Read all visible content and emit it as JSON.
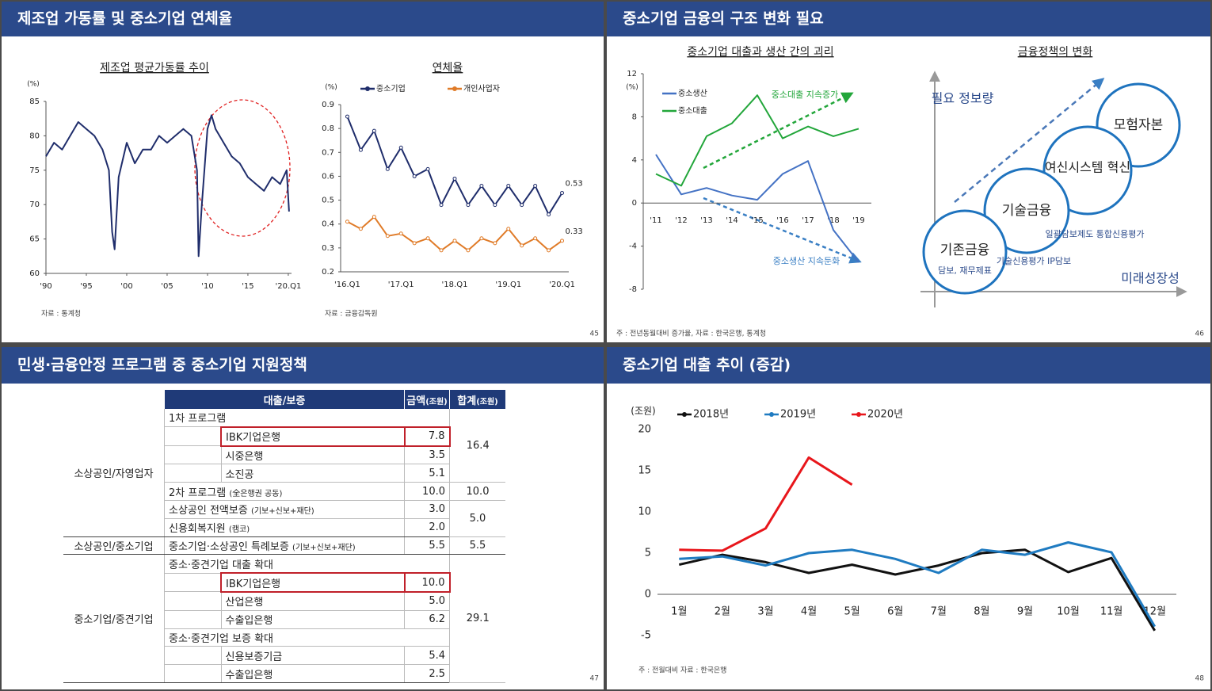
{
  "slides": [
    {
      "title": "제조업 가동률 및 중소기업 연체율",
      "page": "45"
    },
    {
      "title": "중소기업 금융의 구조 변화 필요",
      "page": "46",
      "note": "주 : 전년동월대비 증가율,  자료 : 한국은행, 통계청"
    },
    {
      "title": "민생·금융안정 프로그램 중 중소기업 지원정책",
      "page": "47"
    },
    {
      "title": "중소기업 대출 추이 (증감)",
      "page": "48",
      "note": "주 : 전월대비  자료 : 한국은행"
    }
  ],
  "chart_data": [
    {
      "type": "line",
      "title": "제조업 평균가동률 추이",
      "y_label": "(%)",
      "source": "자료 : 통계청",
      "x": [
        1990,
        1991,
        1992,
        1993,
        1994,
        1995,
        1996,
        1997,
        1997.8,
        1998.2,
        1998.5,
        1999,
        2000,
        2001,
        2002,
        2003,
        2004,
        2005,
        2006,
        2007,
        2008,
        2008.7,
        2008.9,
        2009.3,
        2010,
        2010.5,
        2011,
        2012,
        2013,
        2014,
        2015,
        2016,
        2017,
        2018,
        2019,
        2019.8,
        2020.1
      ],
      "series": [
        {
          "name": "제조업 평균가동률",
          "color": "#1f2d6b",
          "values": [
            77,
            79,
            78,
            80,
            82,
            81,
            80,
            78,
            75,
            66,
            63.5,
            74,
            79,
            76,
            78,
            78,
            80,
            79,
            80,
            81,
            80,
            75,
            62.5,
            70,
            81,
            83,
            81,
            79,
            77,
            76,
            74,
            73,
            72,
            74,
            73,
            75,
            69
          ]
        }
      ],
      "xlim": [
        1990,
        2020.4
      ],
      "xticks": [
        {
          "value": 1990,
          "label": "'90"
        },
        {
          "value": 1995,
          "label": "'95"
        },
        {
          "value": 2000,
          "label": "'00"
        },
        {
          "value": 2005,
          "label": "'05"
        },
        {
          "value": 2010,
          "label": "'10"
        },
        {
          "value": 2015,
          "label": "'15"
        },
        {
          "value": 2020,
          "label": "'20.Q1"
        }
      ],
      "ylim": [
        60,
        85
      ],
      "yticks": [
        60,
        65,
        70,
        75,
        80,
        85
      ]
    },
    {
      "type": "line",
      "title": "연체율",
      "y_label": "(%)",
      "source": "자료 : 금융감독원",
      "legend": "top",
      "markers": true,
      "categories": [
        "'16.Q1",
        null,
        null,
        null,
        "'17.Q1",
        null,
        null,
        null,
        "'18.Q1",
        null,
        null,
        null,
        "'19.Q1",
        null,
        null,
        null,
        "'20.Q1"
      ],
      "series": [
        {
          "name": "중소기업",
          "color": "#1f2d6b",
          "values": [
            0.85,
            0.71,
            0.79,
            0.63,
            0.72,
            0.6,
            0.63,
            0.48,
            0.59,
            0.48,
            0.56,
            0.48,
            0.56,
            0.48,
            0.56,
            0.44,
            0.53
          ]
        },
        {
          "name": "개인사업자",
          "color": "#e07b28",
          "values": [
            0.41,
            0.38,
            0.43,
            0.35,
            0.36,
            0.32,
            0.34,
            0.29,
            0.33,
            0.29,
            0.34,
            0.32,
            0.38,
            0.31,
            0.34,
            0.29,
            0.33
          ]
        }
      ],
      "ylim": [
        0.2,
        0.9
      ],
      "yticks": [
        0.2,
        0.3,
        0.4,
        0.5,
        0.6,
        0.7,
        0.8,
        0.9
      ]
    },
    {
      "type": "line",
      "title": "중소기업 대출과 생산 간의 괴리",
      "y_label": "(%)",
      "legend": "upper left",
      "categories": [
        "'11",
        "'12",
        "'13",
        "'14",
        "'15",
        "'16",
        "'17",
        "'18",
        "'19"
      ],
      "series": [
        {
          "name": "중소생산",
          "color": "#4472c4",
          "values": [
            4.5,
            0.8,
            1.4,
            0.7,
            0.3,
            2.7,
            3.9,
            -2.5,
            -5.5
          ]
        },
        {
          "name": "중소대출",
          "color": "#22a63a",
          "values": [
            2.7,
            1.6,
            6.2,
            7.4,
            10.0,
            6.0,
            7.1,
            6.2,
            6.9
          ]
        }
      ],
      "annotations": [
        "중소대출 지속증가",
        "중소생산 지속둔화"
      ],
      "ylim": [
        -8,
        12
      ],
      "yticks": [
        -8,
        -4,
        0,
        4,
        8,
        12
      ]
    },
    {
      "type": "line",
      "y_label": "(조원)",
      "legend": "top",
      "categories": [
        "1월",
        "2월",
        "3월",
        "4월",
        "5월",
        "6월",
        "7월",
        "8월",
        "9월",
        "10월",
        "11월",
        "12월"
      ],
      "series": [
        {
          "name": "2018년",
          "color": "#111111",
          "values": [
            3.6,
            4.8,
            3.9,
            2.6,
            3.6,
            2.4,
            3.5,
            5.0,
            5.4,
            2.7,
            4.4,
            -4.4
          ]
        },
        {
          "name": "2019년",
          "color": "#1f7bc1",
          "values": [
            4.3,
            4.6,
            3.5,
            5.0,
            5.4,
            4.3,
            2.6,
            5.4,
            4.8,
            6.3,
            5.1,
            -3.9
          ]
        },
        {
          "name": "2020년",
          "color": "#e8161b",
          "values": [
            5.4,
            5.3,
            8.0,
            16.6,
            13.3,
            null,
            null,
            null,
            null,
            null,
            null,
            null
          ]
        }
      ],
      "ylim": [
        -5,
        20
      ],
      "yticks": [
        -5,
        0,
        5,
        10,
        15,
        20
      ]
    }
  ],
  "diagram": {
    "title": "금융정책의 변화",
    "y_axis": "필요 정보량",
    "x_axis": "미래성장성",
    "nodes": [
      {
        "label": "기존금융",
        "sub": "담보, 재무제표"
      },
      {
        "label": "기술금융",
        "sub": "기술신용평가 IP담보"
      },
      {
        "label": "여신시스템 혁신",
        "sub": "일괄담보제도 통합신용평가"
      },
      {
        "label": "모험자본"
      }
    ]
  },
  "table": {
    "header": {
      "item": "대출/보증",
      "amount": "금액",
      "amount_unit": "(조원)",
      "total": "합계",
      "total_unit": "(조원)"
    },
    "groups": [
      {
        "name": "소상공인/자영업자",
        "rows": [
          {
            "item": "1차 프로그램"
          },
          {
            "item": "IBK기업은행",
            "amount": "7.8"
          },
          {
            "item": "시중은행",
            "amount": "3.5"
          },
          {
            "item": "소진공",
            "amount": "5.1"
          },
          {
            "item": "2차 프로그램",
            "detail": "(全은행권 공동)",
            "amount": "10.0"
          },
          {
            "item": "소상공인 전액보증",
            "detail": "(기보+신보+재단)",
            "amount": "3.0"
          },
          {
            "item": "신용회복지원",
            "detail": "(캠코)",
            "amount": "2.0"
          }
        ],
        "totals": [
          "16.4",
          "10.0",
          "5.0"
        ]
      },
      {
        "name": "소상공인/중소기업",
        "rows": [
          {
            "item": "중소기업·소상공인 특례보증",
            "detail": "(기보+신보+재단)",
            "amount": "5.5"
          }
        ],
        "totals": [
          "5.5"
        ]
      },
      {
        "name": "중소기업/중견기업",
        "rows": [
          {
            "item": "중소·중견기업 대출 확대"
          },
          {
            "item": "IBK기업은행",
            "amount": "10.0"
          },
          {
            "item": "산업은행",
            "amount": "5.0"
          },
          {
            "item": "수출입은행",
            "amount": "6.2"
          },
          {
            "item": "중소·중견기업 보증 확대"
          },
          {
            "item": "신용보증기금",
            "amount": "5.4"
          },
          {
            "item": "수출입은행",
            "amount": "2.5"
          }
        ],
        "totals": [
          "29.1"
        ]
      }
    ]
  }
}
